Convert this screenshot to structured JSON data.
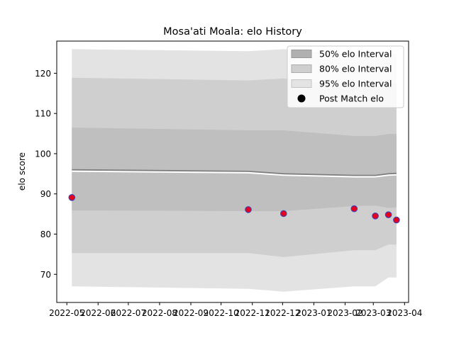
{
  "chart_data": {
    "type": "line",
    "title": "Mosa'ati Moala: elo History",
    "xlabel": "",
    "ylabel": "elo score",
    "x_dates": [
      "2022-05-06",
      "2022-10-28",
      "2022-12-02",
      "2023-02-10",
      "2023-03-03",
      "2023-03-16",
      "2023-03-24"
    ],
    "mean": [
      96.0,
      95.6,
      95.0,
      94.6,
      94.6,
      95.0,
      95.1
    ],
    "band50": {
      "low": [
        85.9,
        85.7,
        85.7,
        87.0,
        87.1,
        86.5,
        86.6
      ],
      "high": [
        106.5,
        105.8,
        105.8,
        104.4,
        104.4,
        104.9,
        104.9
      ]
    },
    "band80": {
      "low": [
        75.3,
        75.3,
        74.3,
        76.0,
        76.0,
        77.4,
        77.4
      ],
      "high": [
        118.9,
        118.2,
        118.7,
        116.7,
        116.7,
        117.5,
        117.5
      ]
    },
    "band95": {
      "low": [
        67.0,
        66.4,
        65.7,
        67.0,
        67.0,
        69.2,
        69.2
      ],
      "high": [
        126.0,
        125.5,
        126.0,
        124.7,
        124.7,
        124.8,
        124.8
      ]
    },
    "points": {
      "x": [
        "2022-05-06",
        "2022-10-28",
        "2022-12-02",
        "2023-02-10",
        "2023-03-03",
        "2023-03-16",
        "2023-03-24"
      ],
      "y": [
        89.1,
        86.1,
        85.1,
        86.3,
        84.5,
        84.8,
        83.5
      ]
    },
    "xlim": [
      "2022-04-21",
      "2023-04-05"
    ],
    "ylim": [
      63,
      128
    ],
    "yticks": [
      70,
      80,
      90,
      100,
      110,
      120
    ],
    "xticks": [
      "2022-05",
      "2022-06",
      "2022-07",
      "2022-08",
      "2022-09",
      "2022-10",
      "2022-11",
      "2022-12",
      "2023-01",
      "2023-02",
      "2023-03",
      "2023-04"
    ],
    "legend": {
      "placement": "top-right",
      "entries": [
        "50% elo Interval",
        "80% elo Interval",
        "95% elo Interval",
        "Post Match elo"
      ]
    },
    "grid": false,
    "colors": {
      "band50": "#bfbfbf",
      "band80": "#cfcfcf",
      "band95": "#e3e3e3",
      "mean": "#7f7f7f",
      "points_fill": "#e8001c",
      "points_edge": "#3f3fb0"
    }
  }
}
